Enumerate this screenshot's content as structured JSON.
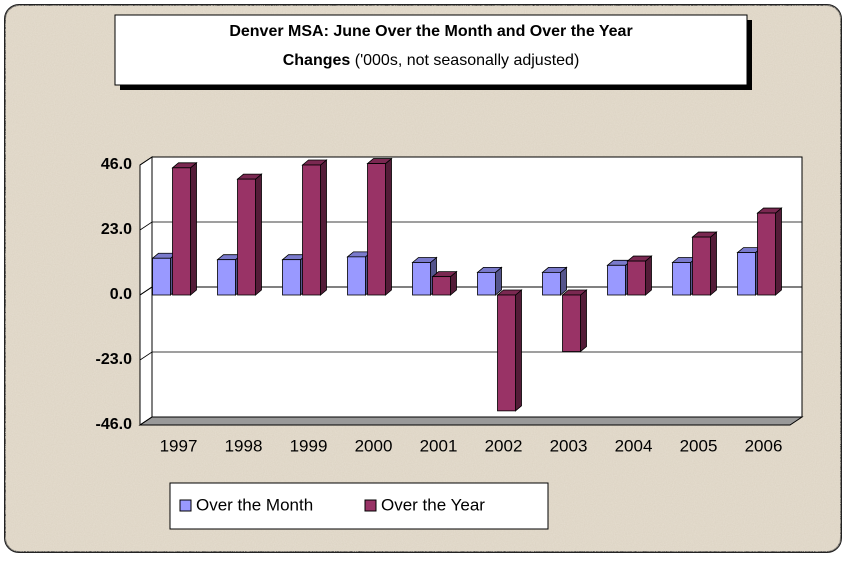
{
  "chart_data": {
    "type": "bar3d",
    "title": "Denver MSA: June Over the Month and Over the Year",
    "subtitle_bold": "Changes",
    "subtitle": "('000s, not seasonally adjusted)",
    "categories": [
      "1997",
      "1998",
      "1999",
      "2000",
      "2001",
      "2002",
      "2003",
      "2004",
      "2005",
      "2006"
    ],
    "series": [
      {
        "name": "Over the Month",
        "color": "#9999ff",
        "values": [
          13,
          12.5,
          12.5,
          13.5,
          11.5,
          8,
          8,
          10.5,
          11.5,
          15
        ]
      },
      {
        "name": "Over the Year",
        "color": "#993366",
        "values": [
          45,
          41,
          46,
          46.5,
          6.5,
          -41,
          -20,
          12,
          20.5,
          29
        ]
      }
    ],
    "ylim": [
      -46,
      46
    ],
    "yticks": [
      {
        "value": -46,
        "label": "-46.0"
      },
      {
        "value": -23,
        "label": "-23.0"
      },
      {
        "value": 0,
        "label": "0.0"
      },
      {
        "value": 23,
        "label": "23.0"
      },
      {
        "value": 46,
        "label": "46.0"
      }
    ],
    "grid": true,
    "legend": "bottom"
  }
}
